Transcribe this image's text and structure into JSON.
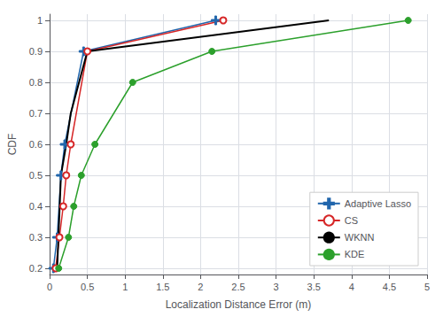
{
  "chart_data": {
    "type": "line",
    "xlabel": "Localization Distance Error (m)",
    "ylabel": "CDF",
    "series": [
      {
        "name": "Adaptive Lasso",
        "color": "#2166AC",
        "marker": "plus",
        "x": [
          0.05,
          0.1,
          0.15,
          0.2,
          0.45,
          2.2
        ],
        "values": [
          0.2,
          0.3,
          0.5,
          0.6,
          0.9,
          1.0
        ]
      },
      {
        "name": "CS",
        "color": "#D62728",
        "marker": "circle-open",
        "x": [
          0.08,
          0.13,
          0.18,
          0.22,
          0.28,
          0.5,
          2.3
        ],
        "values": [
          0.2,
          0.3,
          0.4,
          0.5,
          0.6,
          0.9,
          1.0
        ]
      },
      {
        "name": "WKNN",
        "color": "#000000",
        "marker": "none",
        "x": [
          0.1,
          0.15,
          0.22,
          0.28,
          0.5,
          3.7
        ],
        "values": [
          0.2,
          0.5,
          0.6,
          0.7,
          0.9,
          1.0
        ]
      },
      {
        "name": "KDE",
        "color": "#2CA02C",
        "marker": "circle",
        "x": [
          0.12,
          0.25,
          0.32,
          0.42,
          0.6,
          1.1,
          2.15,
          4.75
        ],
        "values": [
          0.2,
          0.3,
          0.4,
          0.5,
          0.6,
          0.8,
          0.9,
          1.0
        ]
      }
    ],
    "xlim": [
      0,
      5
    ],
    "ylim": [
      0.18,
      1.02
    ],
    "xticks": [
      0,
      0.5,
      1,
      1.5,
      2,
      2.5,
      3,
      3.5,
      4,
      4.5,
      5
    ],
    "yticks": [
      0.2,
      0.3,
      0.4,
      0.5,
      0.6,
      0.7,
      0.8,
      0.9,
      1
    ],
    "grid": true,
    "legend": "lower right"
  }
}
